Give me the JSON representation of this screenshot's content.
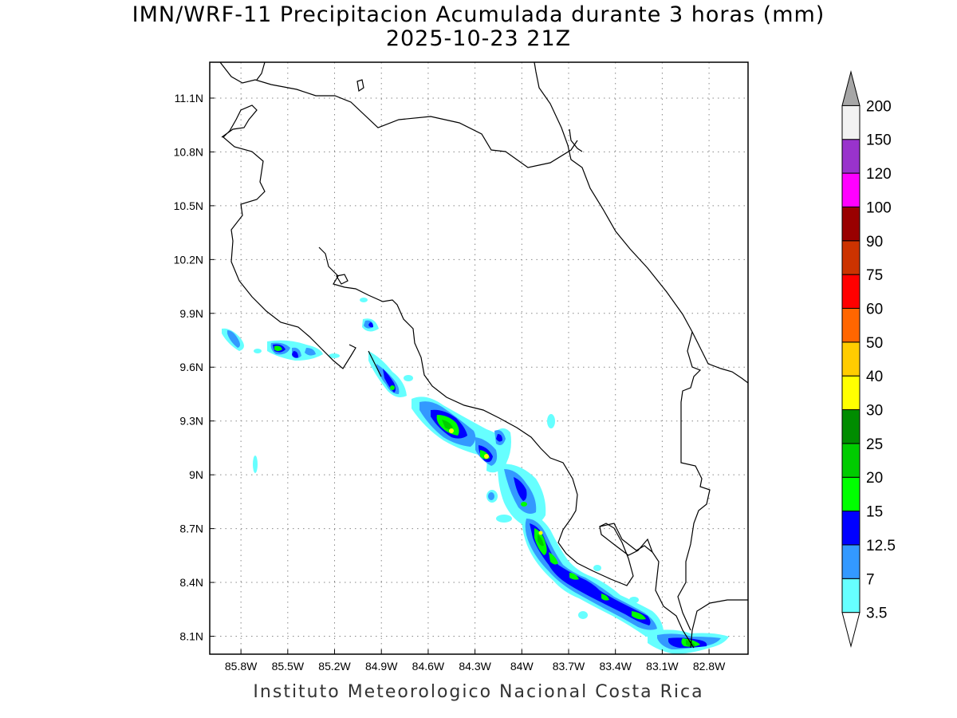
{
  "title": {
    "line1": "IMN/WRF-11 Precipitacion Acumulada durante 3 horas (mm)",
    "line2": "2025-10-23 21Z"
  },
  "footer": "Instituto Meteorologico Nacional Costa Rica",
  "map": {
    "lon_range": [
      -86.0,
      -82.55
    ],
    "lat_range": [
      8.0,
      11.3
    ],
    "x_ticks": [
      {
        "value": -85.8,
        "label": "85.8W"
      },
      {
        "value": -85.5,
        "label": "85.5W"
      },
      {
        "value": -85.2,
        "label": "85.2W"
      },
      {
        "value": -84.9,
        "label": "84.9W"
      },
      {
        "value": -84.6,
        "label": "84.6W"
      },
      {
        "value": -84.3,
        "label": "84.3W"
      },
      {
        "value": -84.0,
        "label": "84W"
      },
      {
        "value": -83.7,
        "label": "83.7W"
      },
      {
        "value": -83.4,
        "label": "83.4W"
      },
      {
        "value": -83.1,
        "label": "83.1W"
      },
      {
        "value": -82.8,
        "label": "82.8W"
      }
    ],
    "y_ticks": [
      {
        "value": 8.1,
        "label": "8.1N"
      },
      {
        "value": 8.4,
        "label": "8.4N"
      },
      {
        "value": 8.7,
        "label": "8.7N"
      },
      {
        "value": 9.0,
        "label": "9N"
      },
      {
        "value": 9.3,
        "label": "9.3N"
      },
      {
        "value": 9.6,
        "label": "9.6N"
      },
      {
        "value": 9.9,
        "label": "9.9N"
      },
      {
        "value": 10.2,
        "label": "10.2N"
      },
      {
        "value": 10.5,
        "label": "10.5N"
      },
      {
        "value": 10.8,
        "label": "10.8N"
      },
      {
        "value": 11.1,
        "label": "11.1N"
      }
    ],
    "grid": "dotted"
  },
  "colorbar": {
    "levels": [
      {
        "label": "3.5",
        "color": "#66ffff"
      },
      {
        "label": "7",
        "color": "#3399ff"
      },
      {
        "label": "12.5",
        "color": "#0000ff"
      },
      {
        "label": "15",
        "color": "#00ff00"
      },
      {
        "label": "20",
        "color": "#00cc00"
      },
      {
        "label": "25",
        "color": "#008c00"
      },
      {
        "label": "30",
        "color": "#ffff00"
      },
      {
        "label": "40",
        "color": "#ffcc00"
      },
      {
        "label": "50",
        "color": "#ff6600"
      },
      {
        "label": "60",
        "color": "#ff0000"
      },
      {
        "label": "75",
        "color": "#cc3300"
      },
      {
        "label": "90",
        "color": "#990000"
      },
      {
        "label": "100",
        "color": "#ff00ff"
      },
      {
        "label": "120",
        "color": "#9933cc"
      },
      {
        "label": "150",
        "color": "#f2f2f2"
      },
      {
        "label": "200",
        "color": "#a6a6a6"
      }
    ]
  }
}
